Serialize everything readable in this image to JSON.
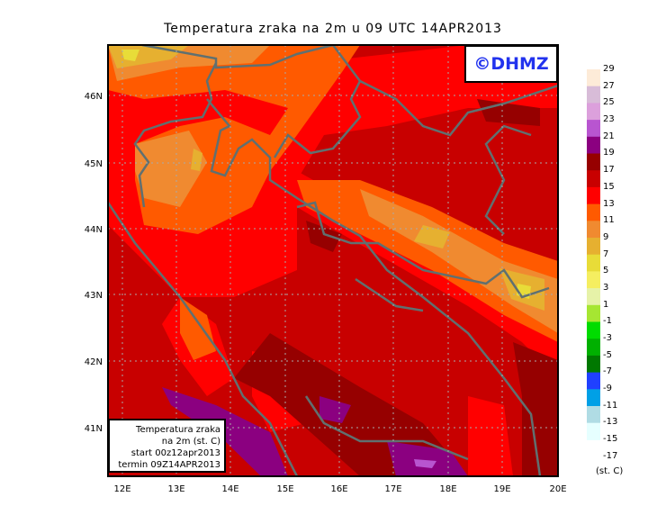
{
  "title": "Temperatura zraka na 2m u 09 UTC 14APR2013",
  "logo_text": "©DHMZ",
  "info_box": [
    "Temperatura zraka",
    "na 2m (st. C)",
    "start 00z12apr2013",
    "termin 09Z14APR2013"
  ],
  "lon_ticks": [
    "12E",
    "13E",
    "14E",
    "15E",
    "16E",
    "17E",
    "18E",
    "19E",
    "20E"
  ],
  "lat_ticks": [
    "46N",
    "45N",
    "44N",
    "43N",
    "42N",
    "41N"
  ],
  "legend": {
    "unit": "(st. C)",
    "labels": [
      "29",
      "27",
      "25",
      "23",
      "21",
      "19",
      "17",
      "15",
      "13",
      "11",
      "9",
      "7",
      "5",
      "3",
      "1",
      "-1",
      "-3",
      "-5",
      "-7",
      "-9",
      "-11",
      "-13",
      "-15",
      "-17"
    ],
    "colors": [
      "#fdebd8",
      "#d8bcd8",
      "#dca0dc",
      "#b855d0",
      "#8b0080",
      "#960000",
      "#c80000",
      "#ff0000",
      "#ff5a00",
      "#f08a30",
      "#e6b030",
      "#e8dc38",
      "#f5ee60",
      "#e6f2a8",
      "#a6e632",
      "#00dc00",
      "#00b000",
      "#007800",
      "#2040ff",
      "#00a0e6",
      "#b0dce4",
      "#e6ffff"
    ]
  },
  "map_colors": {
    "coastline": "#607070",
    "grid": "#aaaaaa"
  }
}
